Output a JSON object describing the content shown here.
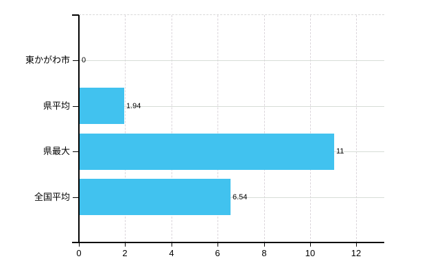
{
  "chart_data": {
    "type": "bar",
    "orientation": "horizontal",
    "title": "",
    "xlabel": "",
    "ylabel": "",
    "categories": [
      "東かがわ市",
      "県平均",
      "県最大",
      "全国平均"
    ],
    "values": [
      0,
      1.94,
      11,
      6.54
    ],
    "value_labels": [
      "0",
      "1.94",
      "11",
      "6.54"
    ],
    "x_ticks": [
      "0",
      "2",
      "4",
      "6",
      "8",
      "10",
      "12"
    ],
    "x_tick_values": [
      0,
      2,
      4,
      6,
      8,
      10,
      12
    ],
    "xlim": [
      0,
      13.2
    ],
    "grid": true,
    "legend": "none",
    "colors": {
      "bar": "#41c2ef",
      "axis": "#000000",
      "h_grid": "#d6dcd6",
      "v_grid": "#dad4da",
      "top_border": "#d8d8d8",
      "label_text": "#000000",
      "background": "#ffffff"
    }
  }
}
